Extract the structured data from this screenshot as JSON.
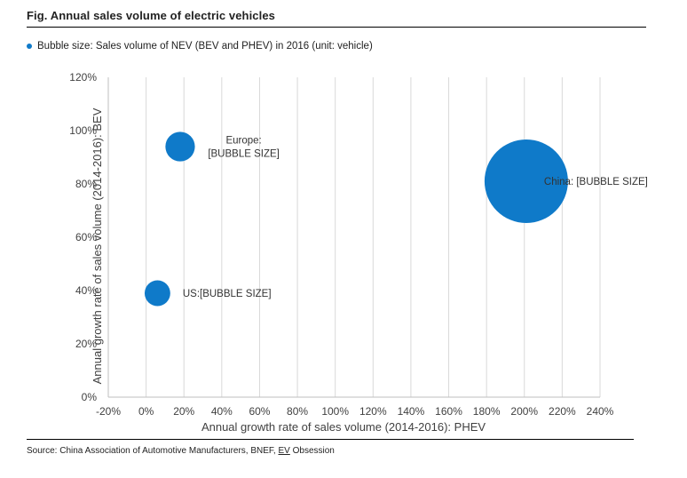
{
  "figure": {
    "title": "Fig. Annual sales volume of electric vehicles",
    "legend_text": "Bubble size: Sales volume of NEV (BEV and PHEV) in 2016 (unit: vehicle)",
    "source_prefix": "Source: China Association of Automotive Manufacturers, BNEF, ",
    "source_ev": "EV",
    "source_suffix": " Obsession"
  },
  "colors": {
    "bubble": "#0f7ac9",
    "grid": "#d9d9d9",
    "axis": "#bfbfbf"
  },
  "chart_data": {
    "type": "scatter",
    "subtype": "bubble",
    "xlabel": "Annual growth rate of sales volume (2014-2016): PHEV",
    "ylabel": "Annual growth rate of sales volume (2014-2016): BEV",
    "xlim": [
      -0.2,
      2.4
    ],
    "ylim": [
      0,
      1.2
    ],
    "x_ticks": [
      "-20%",
      "0%",
      "20%",
      "40%",
      "60%",
      "80%",
      "100%",
      "120%",
      "140%",
      "160%",
      "180%",
      "200%",
      "220%",
      "240%"
    ],
    "y_ticks": [
      "0%",
      "20%",
      "40%",
      "60%",
      "80%",
      "100%",
      "120%"
    ],
    "grid": "vertical",
    "series": [
      {
        "points": [
          {
            "label": "Europe:\n[BUBBLE SIZE]",
            "x": 0.18,
            "y": 0.94,
            "size": 0.45
          },
          {
            "label": "China: [BUBBLE SIZE]",
            "x": 2.01,
            "y": 0.81,
            "size": 3.6
          },
          {
            "label": "US:[BUBBLE SIZE]",
            "x": 0.06,
            "y": 0.39,
            "size": 0.34
          }
        ]
      }
    ]
  }
}
